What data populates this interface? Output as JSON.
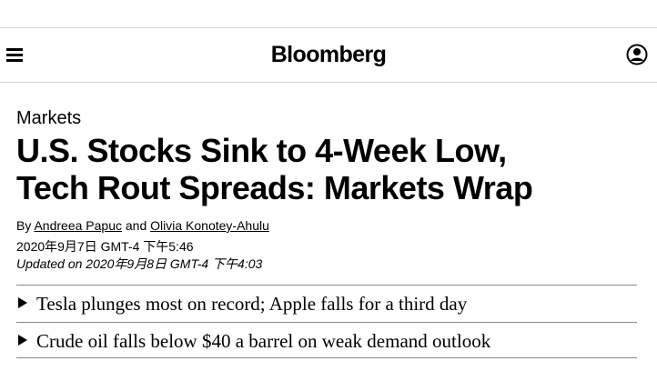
{
  "header": {
    "logo": "Bloomberg",
    "menu_icon": "hamburger-menu-icon",
    "account_icon": "user-account-icon"
  },
  "article": {
    "kicker": "Markets",
    "headline_line1": "U.S. Stocks Sink to 4-Week Low,",
    "headline_line2": "Tech Rout Spreads: Markets Wrap",
    "byline_prefix": "By",
    "author1": "Andreea Papuc",
    "byline_and": "and",
    "author2": "Olivia Konotey-Ahulu",
    "published": "2020年9月7日 GMT-4 下午5:46",
    "updated": "Updated on 2020年9月8日 GMT-4 下午4:03"
  },
  "summary": [
    {
      "text": "Tesla plunges most on record; Apple falls for a third day",
      "icon": "triangle-bullet-icon"
    },
    {
      "text": "Crude oil falls below $40 a barrel on weak demand outlook",
      "icon": "triangle-bullet-icon"
    }
  ]
}
